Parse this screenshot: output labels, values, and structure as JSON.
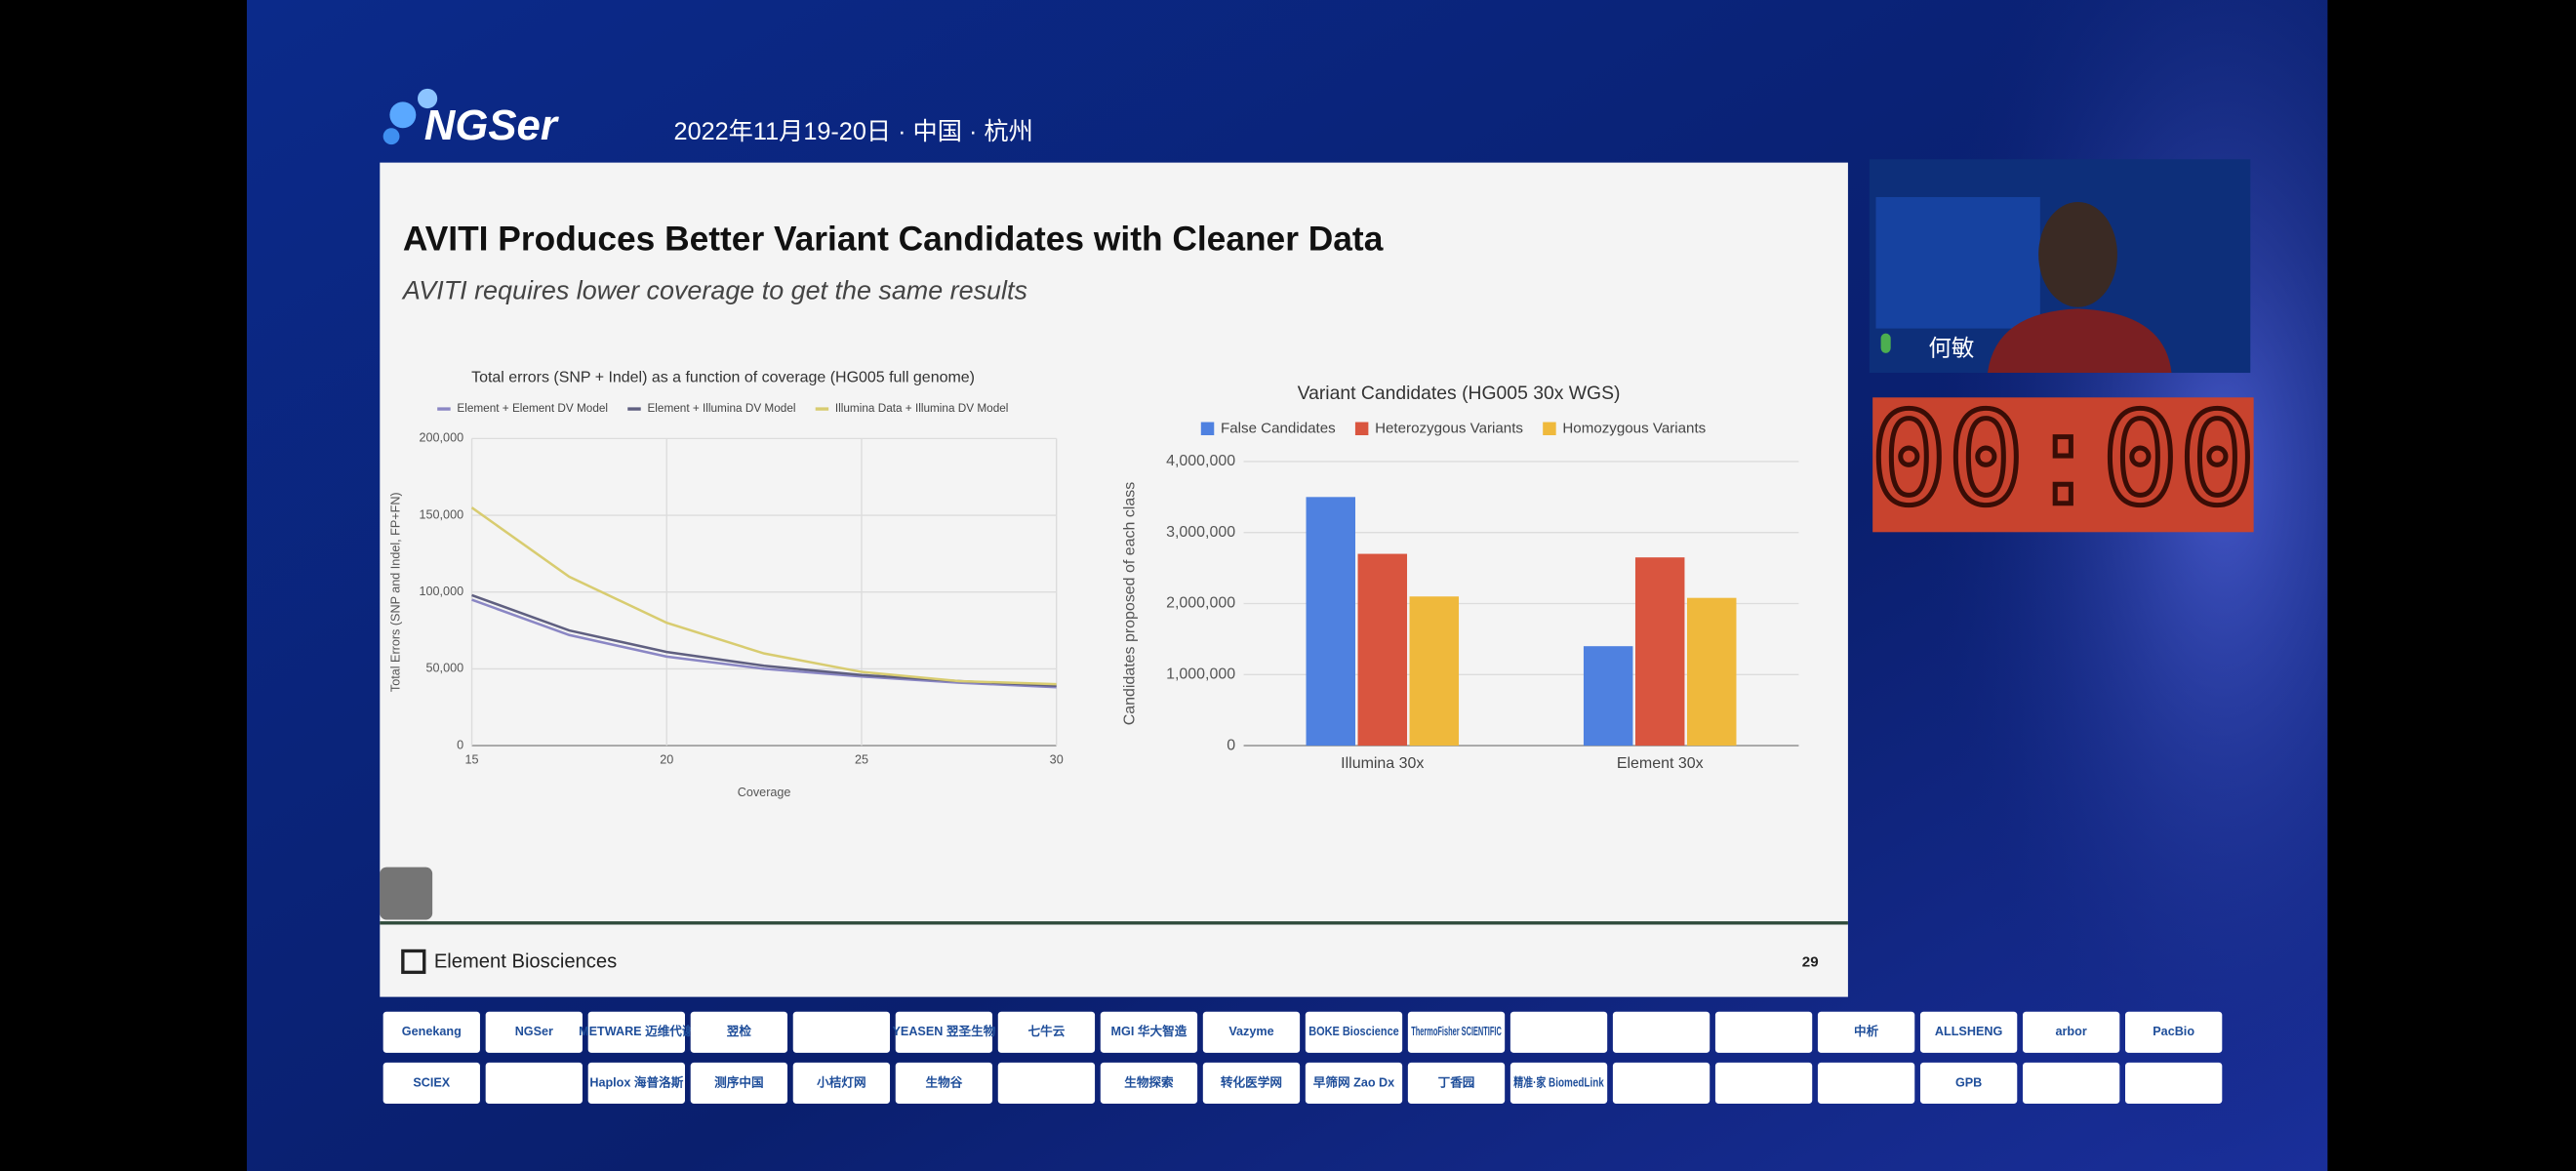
{
  "header": {
    "logo": "NGSer",
    "date": "2022年11月19-20日 · 中国 · 杭州"
  },
  "slide": {
    "title": "AVITI Produces Better Variant Candidates with Cleaner Data",
    "subtitle": "AVITI requires lower coverage to get the same results",
    "footer": "Element Biosciences",
    "page_number": 29,
    "charts": [
      {
        "type": "line",
        "title": "Total errors (SNP + Indel) as a function of coverage (HG005 full genome)",
        "x_label": "Coverage",
        "y_label": "Total Errors (SNP and Indel, FP+FN)",
        "x": [
          15,
          17.5,
          20,
          22.5,
          25,
          27.5,
          30
        ],
        "xlim": [
          15,
          30
        ],
        "xticks": [
          15,
          20,
          25,
          30
        ],
        "ylim": [
          0,
          200000
        ],
        "yticks": [
          0,
          {
            "value": 50000,
            "label": "50,000"
          },
          {
            "value": 100000,
            "label": "100,000"
          },
          {
            "value": 150000,
            "label": "150,000"
          },
          {
            "value": 200000,
            "label": "200,000"
          }
        ],
        "grid": true,
        "legend": "top",
        "series": [
          {
            "name": "Element + Element DV Model",
            "color": "#8a86c4",
            "values": [
              95000,
              72000,
              58000,
              50000,
              45000,
              41000,
              38000
            ]
          },
          {
            "name": "Element + Illumina DV Model",
            "color": "#5f5f80",
            "values": [
              98000,
              75000,
              61000,
              52000,
              46000,
              42000,
              39000
            ]
          },
          {
            "name": "Illumina Data + Illumina DV Model",
            "color": "#d8cc70",
            "values": [
              155000,
              110000,
              80000,
              60000,
              48000,
              42000,
              40000
            ]
          }
        ]
      },
      {
        "type": "bar",
        "title": "Variant Candidates (HG005 30x WGS)",
        "y_label": "Candidates proposed of each class",
        "categories": [
          "Illumina 30x",
          "Element 30x"
        ],
        "ylim": [
          0,
          4000000
        ],
        "yticks": [
          0,
          {
            "value": 1000000,
            "label": "1,000,000"
          },
          {
            "value": 2000000,
            "label": "2,000,000"
          },
          {
            "value": 3000000,
            "label": "3,000,000"
          },
          {
            "value": 4000000,
            "label": "4,000,000"
          }
        ],
        "grid": true,
        "legend": "top",
        "series": [
          {
            "name": "False Candidates",
            "color": "#4f81e0",
            "values": [
              3500000,
              1400000
            ]
          },
          {
            "name": "Heterozygous Variants",
            "color": "#d9553f",
            "values": [
              2700000,
              2650000
            ]
          },
          {
            "name": "Homozygous Variants",
            "color": "#efb93c",
            "values": [
              2100000,
              2080000
            ]
          }
        ]
      }
    ]
  },
  "speaker": {
    "name": "何敏"
  },
  "timer": "00:00",
  "sponsors": [
    [
      "Genekang",
      "NGSer",
      "METWARE 迈维代谢",
      "翌检",
      null,
      "YEASEN 翌圣生物",
      "七牛云",
      "MGI 华大智造",
      "Vazyme",
      "BOKE Bioscience",
      "ThermoFisher SCIENTIFIC",
      null,
      null,
      null,
      "中析",
      "ALLSHENG",
      "arbor",
      "PacBio"
    ],
    [
      "SCIEX",
      null,
      "Haplox 海普洛斯",
      "测序中国",
      "小桔灯网",
      "生物谷",
      null,
      "生物探索",
      "转化医学网",
      "早筛网 Zao Dx",
      "丁香园",
      "精准·家 BiomedLink",
      null,
      null,
      null,
      "GPB",
      null,
      null
    ]
  ]
}
